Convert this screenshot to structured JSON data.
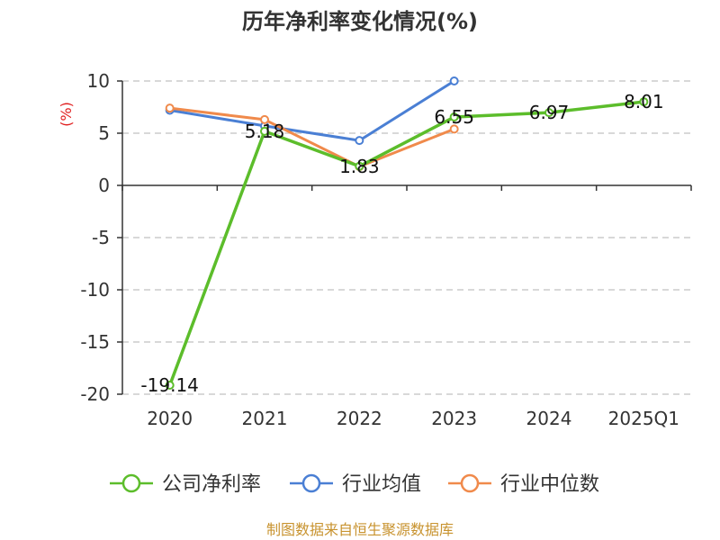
{
  "chart_data": {
    "type": "line",
    "title": "历年净利率变化情况(%)",
    "ylabel": "(%)",
    "xlabel": "",
    "categories": [
      "2020",
      "2021",
      "2022",
      "2023",
      "2024",
      "2025Q1"
    ],
    "ylim": [
      -20,
      10
    ],
    "yticks": [
      10,
      5,
      0,
      -5,
      -10,
      -15,
      -20
    ],
    "grid": true,
    "legend_position": "bottom",
    "series": [
      {
        "name": "公司净利率",
        "color": "#5cbd2b",
        "values": [
          -19.14,
          5.18,
          1.83,
          6.55,
          6.97,
          8.01
        ],
        "labels": [
          "-19.14",
          "5.18",
          "1.83",
          "6.55",
          "6.97",
          "8.01"
        ]
      },
      {
        "name": "行业均值",
        "color": "#4a7fd4",
        "values": [
          7.2,
          5.7,
          4.3,
          10.0,
          null,
          null
        ]
      },
      {
        "name": "行业中位数",
        "color": "#f08a4b",
        "values": [
          7.4,
          6.3,
          1.8,
          5.4,
          null,
          null
        ]
      }
    ]
  },
  "footer": {
    "source": "制图数据来自恒生聚源数据库",
    "source_color": "#c8932f"
  },
  "colors": {
    "ylabel": "#e02020",
    "axis": "#333333",
    "grid": "#cccccc"
  }
}
